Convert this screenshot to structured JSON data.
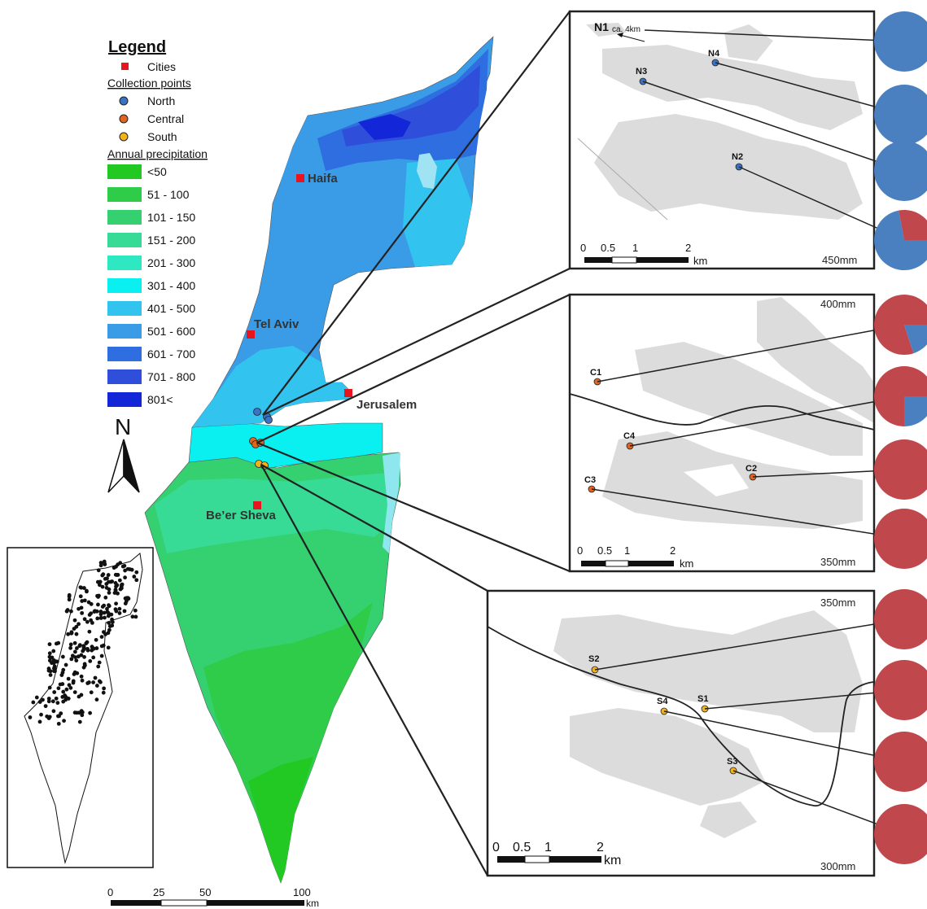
{
  "legend": {
    "title": "Legend",
    "cities_label": "Cities",
    "collection_title": "Collection points",
    "collection_items": [
      {
        "label": "North",
        "color": "#3b73c4"
      },
      {
        "label": "Central",
        "color": "#e0661f"
      },
      {
        "label": "South",
        "color": "#f2b21c"
      }
    ],
    "precip_title": "Annual precipitation",
    "precip_items": [
      {
        "label": "<50",
        "color": "#22c922"
      },
      {
        "label": "51 - 100",
        "color": "#2ecc48"
      },
      {
        "label": "101 - 150",
        "color": "#35d070"
      },
      {
        "label": "151 - 200",
        "color": "#37db95"
      },
      {
        "label": "201 - 300",
        "color": "#2ee8c2"
      },
      {
        "label": "301 - 400",
        "color": "#0af0f0"
      },
      {
        "label": "401 - 500",
        "color": "#32c4ee"
      },
      {
        "label": "501 - 600",
        "color": "#3a9be6"
      },
      {
        "label": "601 - 700",
        "color": "#2f6ee0"
      },
      {
        "label": "701 - 800",
        "color": "#2f4fdb"
      },
      {
        "label": "801<",
        "color": "#1327d9"
      }
    ],
    "north_label": "N"
  },
  "cities": [
    {
      "name": "Haifa"
    },
    {
      "name": "Tel Aviv"
    },
    {
      "name": "Jerusalem"
    },
    {
      "name": "Be’er Sheva"
    }
  ],
  "main_scale": {
    "ticks": [
      "0",
      "25",
      "50",
      "100"
    ],
    "unit": "km"
  },
  "panels": [
    {
      "id": "north",
      "precip_labels": [
        "450mm"
      ],
      "scale_ticks": [
        "0",
        "0.5",
        "1",
        "2"
      ],
      "scale_unit": "km",
      "points": [
        {
          "label": "N1",
          "note": "ca. 4km",
          "pie_red_fraction": 0.0,
          "pie_blue_fraction": 1.0
        },
        {
          "label": "N4",
          "pie_red_fraction": 0.0,
          "pie_blue_fraction": 1.0
        },
        {
          "label": "N3",
          "pie_red_fraction": 0.0,
          "pie_blue_fraction": 1.0
        },
        {
          "label": "N2",
          "pie_red_fraction": 0.28,
          "pie_blue_fraction": 0.72
        }
      ]
    },
    {
      "id": "central",
      "precip_labels": [
        "400mm",
        "350mm"
      ],
      "scale_ticks": [
        "0",
        "0.5",
        "1",
        "2"
      ],
      "scale_unit": "km",
      "points": [
        {
          "label": "C1",
          "pie_red_fraction": 0.8,
          "pie_blue_fraction": 0.2
        },
        {
          "label": "C4",
          "pie_red_fraction": 0.75,
          "pie_blue_fraction": 0.25
        },
        {
          "label": "C2",
          "pie_red_fraction": 1.0,
          "pie_blue_fraction": 0.0
        },
        {
          "label": "C3",
          "pie_red_fraction": 1.0,
          "pie_blue_fraction": 0.0
        }
      ]
    },
    {
      "id": "south",
      "precip_labels": [
        "350mm",
        "300mm"
      ],
      "scale_ticks": [
        "0",
        "0.5",
        "1",
        "2"
      ],
      "scale_unit": "km",
      "points": [
        {
          "label": "S2",
          "pie_red_fraction": 1.0,
          "pie_blue_fraction": 0.0
        },
        {
          "label": "S1",
          "pie_red_fraction": 1.0,
          "pie_blue_fraction": 0.0
        },
        {
          "label": "S4",
          "pie_red_fraction": 1.0,
          "pie_blue_fraction": 0.0
        },
        {
          "label": "S3",
          "pie_red_fraction": 1.0,
          "pie_blue_fraction": 0.0
        }
      ]
    }
  ],
  "pie_colors": {
    "red": "#c0474b",
    "blue": "#4a7fc0"
  },
  "city_marker_color": "#e8141e"
}
